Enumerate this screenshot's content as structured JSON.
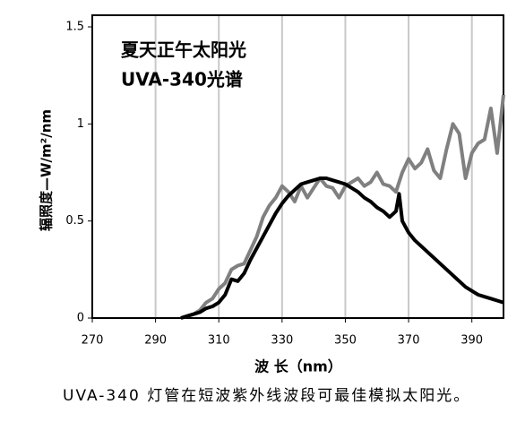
{
  "chart_data": {
    "type": "line",
    "xlabel": "波 长（nm）",
    "ylabel": "辐照度—W/m²/nm",
    "x": [
      298,
      300,
      302,
      304,
      306,
      308,
      310,
      312,
      314,
      316,
      318,
      320,
      322,
      324,
      326,
      328,
      330,
      332,
      334,
      336,
      338,
      340,
      342,
      344,
      346,
      348,
      350,
      352,
      354,
      356,
      358,
      360,
      362,
      364,
      366,
      367,
      368,
      370,
      372,
      374,
      376,
      378,
      380,
      382,
      384,
      386,
      388,
      390,
      392,
      394,
      396,
      398,
      400
    ],
    "series": [
      {
        "name": "夏天正午太阳光",
        "color": "#808080",
        "values": [
          0,
          0.01,
          0.02,
          0.04,
          0.08,
          0.1,
          0.15,
          0.18,
          0.25,
          0.27,
          0.28,
          0.35,
          0.42,
          0.52,
          0.58,
          0.62,
          0.68,
          0.65,
          0.6,
          0.68,
          0.62,
          0.67,
          0.72,
          0.68,
          0.67,
          0.62,
          0.68,
          0.7,
          0.72,
          0.68,
          0.7,
          0.75,
          0.69,
          0.68,
          0.65,
          0.7,
          0.75,
          0.82,
          0.77,
          0.8,
          0.87,
          0.76,
          0.72,
          0.87,
          1.0,
          0.95,
          0.72,
          0.85,
          0.9,
          0.92,
          1.08,
          0.85,
          1.15
        ]
      },
      {
        "name": "UVA-340光谱",
        "color": "#000000",
        "values": [
          0,
          0.01,
          0.02,
          0.03,
          0.05,
          0.06,
          0.08,
          0.12,
          0.2,
          0.19,
          0.23,
          0.3,
          0.36,
          0.42,
          0.48,
          0.54,
          0.59,
          0.63,
          0.66,
          0.69,
          0.7,
          0.71,
          0.72,
          0.72,
          0.71,
          0.7,
          0.69,
          0.67,
          0.65,
          0.62,
          0.6,
          0.57,
          0.55,
          0.52,
          0.55,
          0.64,
          0.5,
          0.44,
          0.4,
          0.37,
          0.34,
          0.31,
          0.28,
          0.25,
          0.22,
          0.19,
          0.16,
          0.14,
          0.12,
          0.11,
          0.1,
          0.09,
          0.08
        ]
      }
    ],
    "xlim": [
      270,
      400
    ],
    "xticks": [
      270,
      290,
      310,
      330,
      350,
      370,
      390
    ],
    "ylim": [
      0,
      1.5
    ],
    "yticks": [
      0,
      0.5,
      1,
      1.5
    ],
    "grid": true,
    "caption": "UVA-340 灯管在短波紫外线波段可最佳模拟太阳光。"
  }
}
